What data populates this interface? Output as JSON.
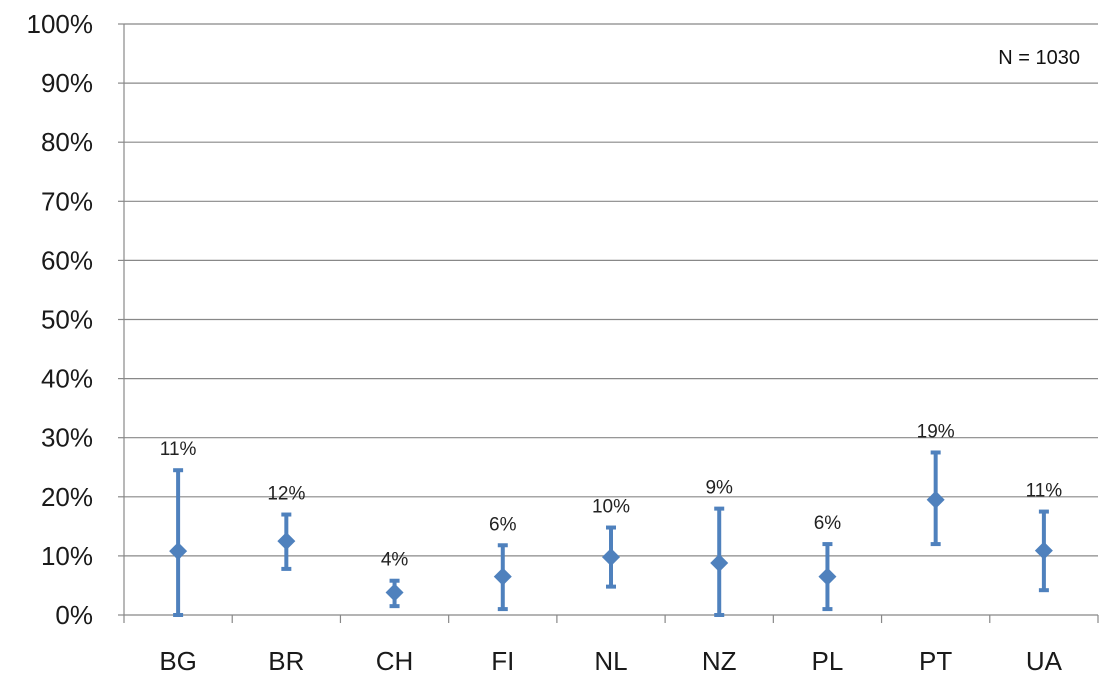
{
  "chart_data": {
    "type": "scatter",
    "categories": [
      "BG",
      "BR",
      "CH",
      "FI",
      "NL",
      "NZ",
      "PL",
      "PT",
      "UA"
    ],
    "values": [
      10.8,
      12.5,
      3.8,
      6.5,
      9.8,
      8.8,
      6.5,
      19.5,
      10.9
    ],
    "error_low": [
      0.0,
      7.8,
      1.5,
      1.0,
      4.8,
      0.0,
      1.0,
      12.0,
      4.2
    ],
    "error_high": [
      24.5,
      17.0,
      5.8,
      11.8,
      14.8,
      18.0,
      12.0,
      27.5,
      17.5
    ],
    "data_labels": [
      "11%",
      "12%",
      "4%",
      "6%",
      "10%",
      "9%",
      "6%",
      "19%",
      "11%"
    ],
    "y_ticks": [
      "0%",
      "10%",
      "20%",
      "30%",
      "40%",
      "50%",
      "60%",
      "70%",
      "80%",
      "90%",
      "100%"
    ],
    "ylim": [
      0,
      100
    ],
    "grid": true,
    "annotation": "N = 1030",
    "marker_color": "#4f81bd",
    "grid_color": "#888888"
  }
}
